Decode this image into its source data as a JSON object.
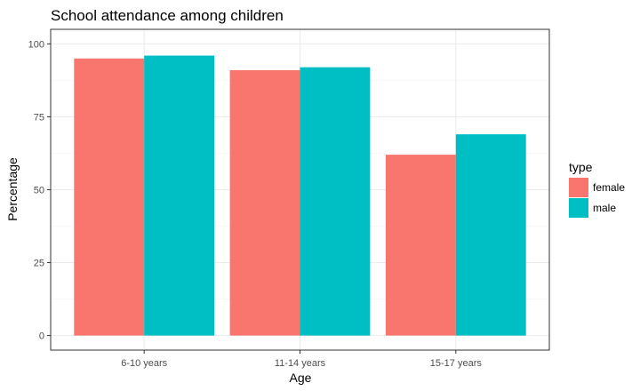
{
  "chart_data": {
    "type": "bar",
    "title": "School attendance among children",
    "xlabel": "Age",
    "ylabel": "Percentage",
    "categories": [
      "6-10 years",
      "11-14 years",
      "15-17 years"
    ],
    "series": [
      {
        "name": "female",
        "values": [
          95,
          91,
          62
        ],
        "color": "#F8766D"
      },
      {
        "name": "male",
        "values": [
          96,
          92,
          69
        ],
        "color": "#00BFC4"
      }
    ],
    "ylim": [
      0,
      100
    ],
    "yticks": [
      0,
      25,
      50,
      75,
      100
    ],
    "grid": true,
    "legend": {
      "title": "type",
      "position": "right"
    }
  }
}
